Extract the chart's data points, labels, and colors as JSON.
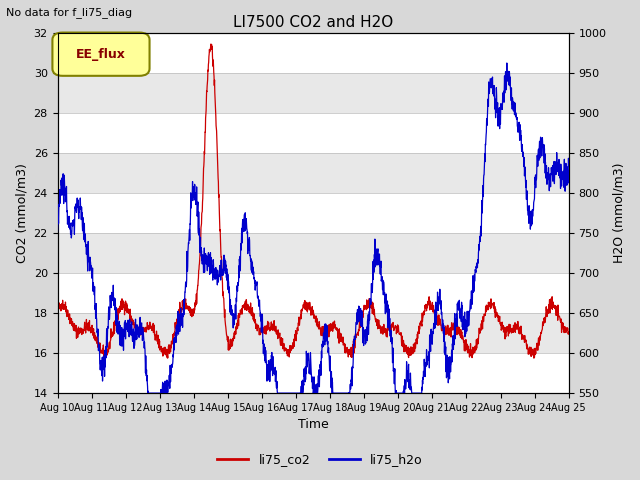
{
  "title": "LI7500 CO2 and H2O",
  "suptitle": "No data for f_li75_diag",
  "xlabel": "Time",
  "ylabel_left": "CO2 (mmol/m3)",
  "ylabel_right": "H2O (mmol/m3)",
  "ylim_left": [
    14,
    32
  ],
  "ylim_right": [
    550,
    1000
  ],
  "yticks_left": [
    14,
    16,
    18,
    20,
    22,
    24,
    26,
    28,
    30,
    32
  ],
  "yticks_right": [
    550,
    600,
    650,
    700,
    750,
    800,
    850,
    900,
    950,
    1000
  ],
  "xtick_labels": [
    "Aug 10",
    "Aug 11",
    "Aug 12",
    "Aug 13",
    "Aug 14",
    "Aug 15",
    "Aug 16",
    "Aug 17",
    "Aug 18",
    "Aug 19",
    "Aug 20",
    "Aug 21",
    "Aug 22",
    "Aug 23",
    "Aug 24",
    "Aug 25"
  ],
  "legend_label1": "li75_co2",
  "legend_label2": "li75_h2o",
  "color_co2": "#cc0000",
  "color_h2o": "#0000cc",
  "legend_box_fill": "#ffff99",
  "legend_box_edge": "#808000",
  "legend_box_label": "EE_flux",
  "legend_box_text_color": "#880000",
  "bg_color": "#d8d8d8",
  "plot_bg_color": "#d8d8d8",
  "band_white": "#ffffff",
  "band_gray": "#e8e8e8",
  "grid_line_color": "#bbbbbb"
}
